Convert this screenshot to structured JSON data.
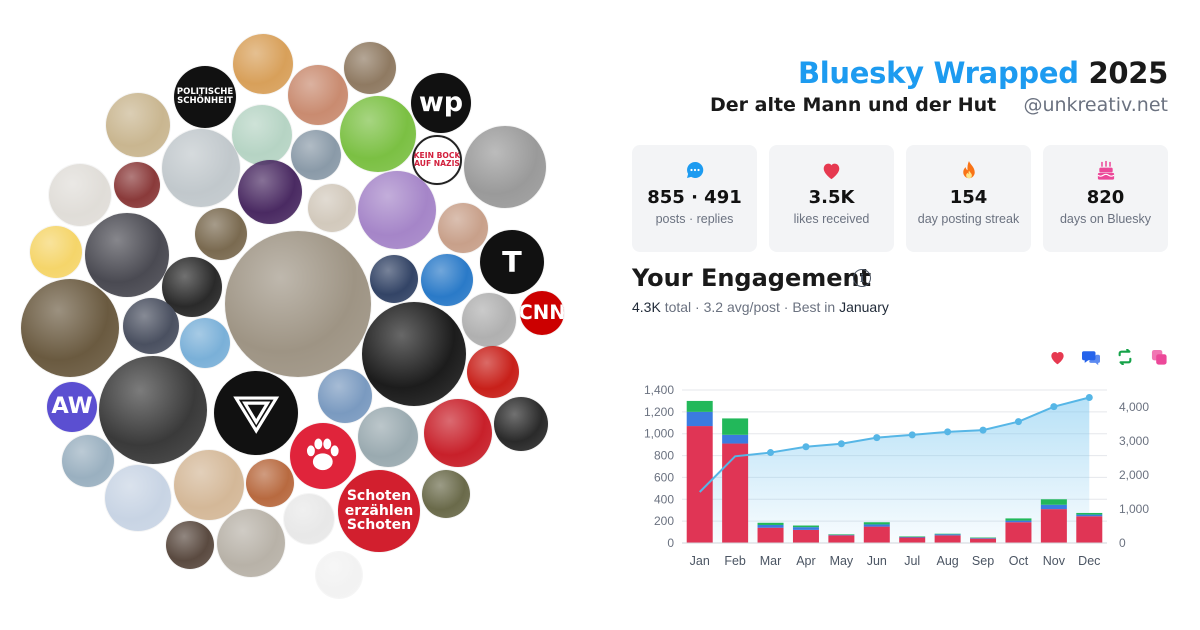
{
  "header": {
    "title_brand": "Bluesky Wrapped",
    "title_year": "2025",
    "subtitle": "Der alte Mann und der Hut",
    "handle": "@unkreativ.net"
  },
  "stats": [
    {
      "icon": "chat-bubble-icon",
      "color": "#1d9bf0",
      "value": "855 · 491",
      "label": "posts · replies"
    },
    {
      "icon": "heart-icon",
      "color": "#e63950",
      "value": "3.5K",
      "label": "likes received"
    },
    {
      "icon": "flame-icon",
      "color": "#f97316",
      "value": "154",
      "label": "day posting streak"
    },
    {
      "icon": "cake-icon",
      "color": "#ec4899",
      "value": "820",
      "label": "days on Bluesky"
    }
  ],
  "engagement": {
    "title": "Your Engagement",
    "total": "4.3K",
    "total_label": "total",
    "avg": "3.2 avg/post",
    "best_prefix": "Best in",
    "best_month": "January",
    "legend": [
      {
        "icon": "heart-icon",
        "color": "#e63950"
      },
      {
        "icon": "reply-icon",
        "color": "#2563eb"
      },
      {
        "icon": "repost-icon",
        "color": "#16a34a"
      },
      {
        "icon": "quote-icon",
        "color": "#ec4899"
      }
    ]
  },
  "avatars": [
    {
      "name": "avatar-politische-schoenheit",
      "text": "POLITISCHE\nSCHÖNHEIT",
      "bg": "#111111",
      "fg": "#ffffff"
    },
    {
      "name": "avatar-washington-post",
      "text": "wp",
      "bg": "#111111",
      "fg": "#ffffff"
    },
    {
      "name": "avatar-new-york-times",
      "text": "T",
      "bg": "#111111",
      "fg": "#ffffff"
    },
    {
      "name": "avatar-cnn",
      "text": "CNN",
      "bg": "#cc0000",
      "fg": "#ffffff"
    },
    {
      "name": "avatar-aw",
      "text": "AW",
      "bg": "#5b4fd1",
      "fg": "#ffffff"
    },
    {
      "name": "avatar-kein-bock-auf-nazis",
      "text": "KEIN BOCK\nAUF NAZIS",
      "bg": "#ffffff",
      "fg": "#d21f3c"
    },
    {
      "name": "avatar-schoten-erzaehlen",
      "text": "Schoten\nerzählen\nSchoten",
      "bg": "#d21f2e",
      "fg": "#ffffff"
    },
    {
      "name": "avatar-paw-logo",
      "text": "",
      "bg": "#e0243b",
      "fg": "#ffffff"
    },
    {
      "name": "avatar-triangle-logo",
      "text": "",
      "bg": "#111111",
      "fg": "#ffffff"
    }
  ],
  "chart_data": {
    "type": "bar",
    "categories": [
      "Jan",
      "Feb",
      "Mar",
      "Apr",
      "May",
      "Jun",
      "Jul",
      "Aug",
      "Sep",
      "Oct",
      "Nov",
      "Dec"
    ],
    "series": [
      {
        "values": [
          1070,
          910,
          140,
          120,
          70,
          150,
          50,
          70,
          40,
          190,
          310,
          245
        ],
        "color": "#e03555"
      },
      {
        "values": [
          130,
          80,
          25,
          25,
          5,
          20,
          5,
          10,
          5,
          15,
          40,
          15
        ],
        "color": "#3b7be0"
      },
      {
        "values": [
          100,
          150,
          20,
          15,
          5,
          20,
          5,
          5,
          5,
          20,
          50,
          15
        ],
        "color": "#22b85a"
      }
    ],
    "line": {
      "values": [
        1500,
        2550,
        2660,
        2830,
        2920,
        3100,
        3180,
        3270,
        3320,
        3570,
        4010,
        4280
      ],
      "color": "#56b6e6"
    },
    "ylim": [
      0,
      1400
    ],
    "y_ticks": [
      "0",
      "200",
      "400",
      "600",
      "800",
      "1,000",
      "1,200",
      "1,400"
    ],
    "y2lim": [
      0,
      4500
    ],
    "y2_ticks": [
      "0",
      "1,000",
      "2,000",
      "3,000",
      "4,000"
    ],
    "grid": true
  }
}
